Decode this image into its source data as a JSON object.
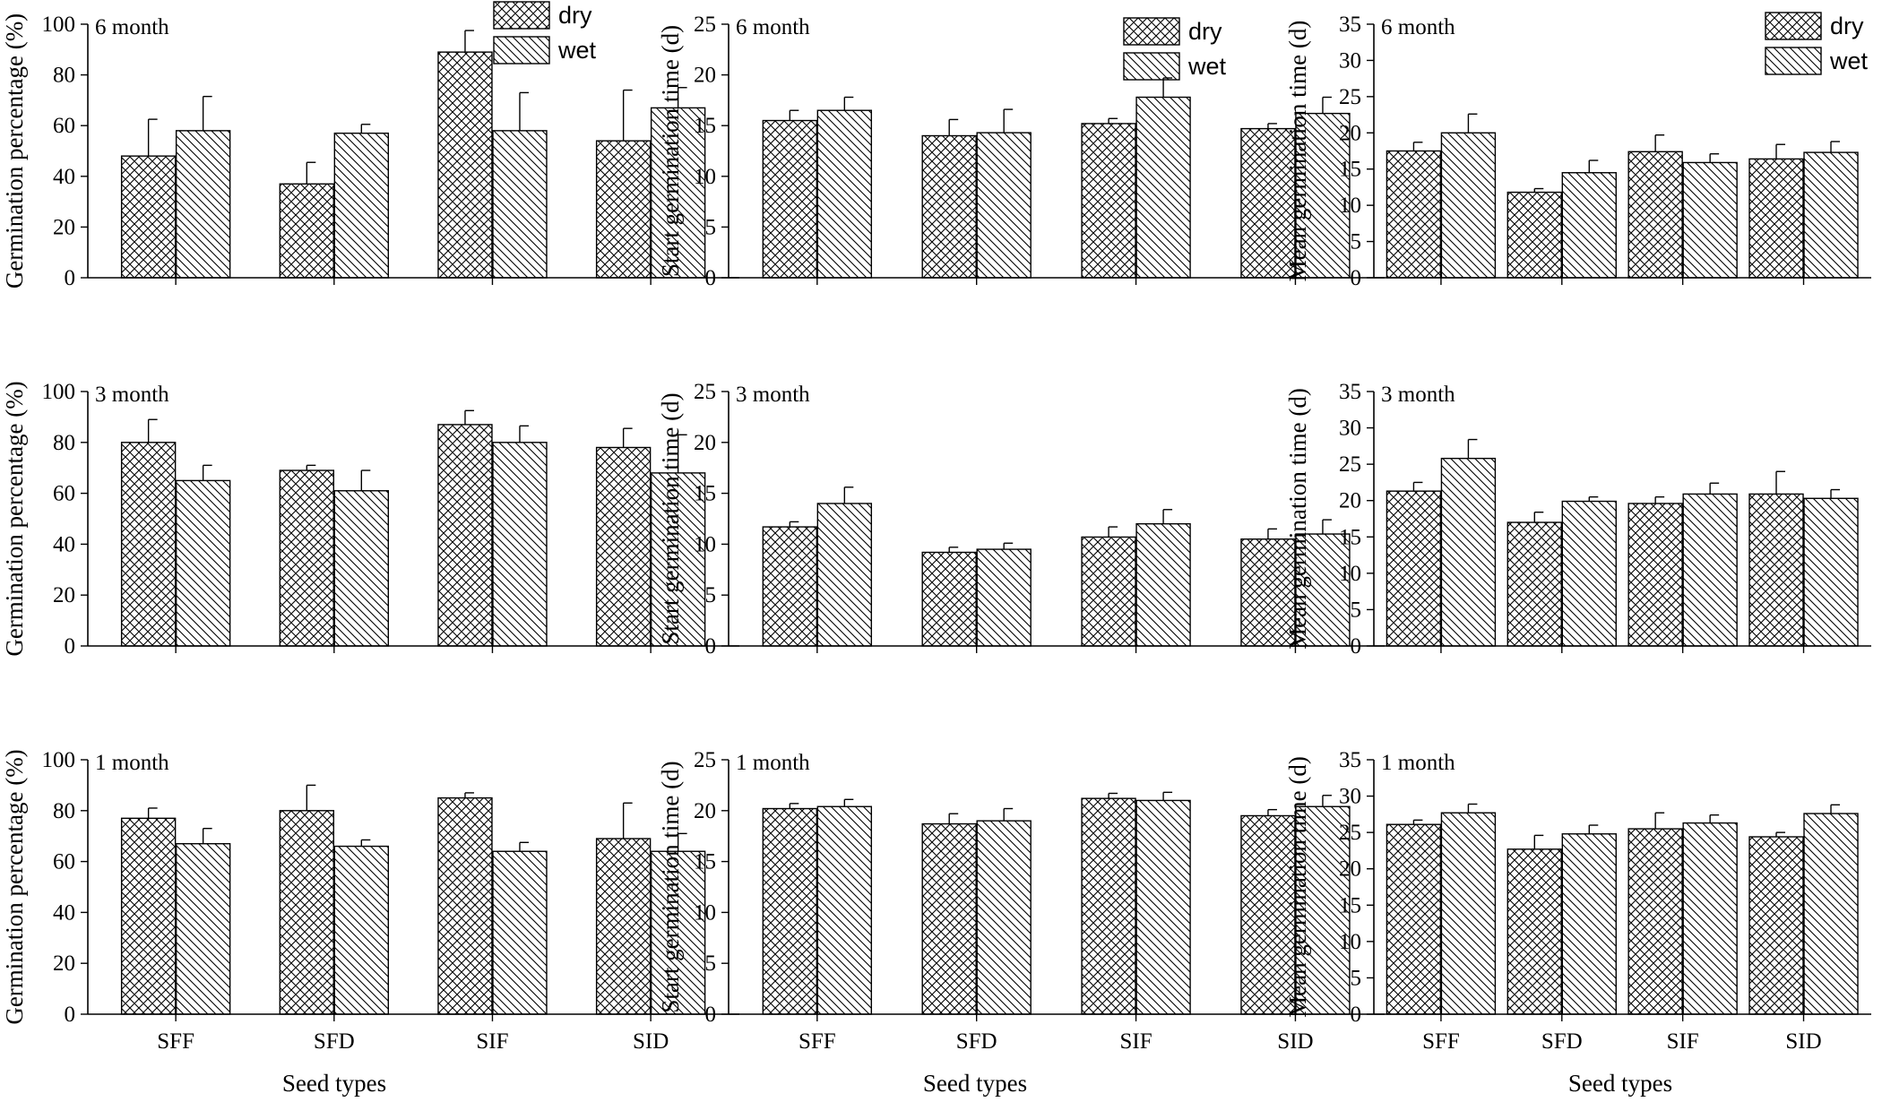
{
  "figure": {
    "x_axis_title": "Seed types",
    "legend": [
      {
        "key": "dry",
        "label": "dry",
        "pattern": "crosshatch"
      },
      {
        "key": "wet",
        "label": "wet",
        "pattern": "diagonal"
      }
    ],
    "colors": {
      "ink": "#000000",
      "background": "#ffffff"
    }
  },
  "chart_data": [
    {
      "type": "bar",
      "title": "6 month",
      "ylabel": "Germination percentage (%)",
      "ylim": [
        0,
        100
      ],
      "ytick_step": 20,
      "categories": [
        "SFF",
        "SFD",
        "SIF",
        "SID"
      ],
      "series": [
        {
          "name": "dry",
          "values": [
            48,
            37,
            89,
            54
          ],
          "errors": [
            14.5,
            8.5,
            8.5,
            20
          ]
        },
        {
          "name": "wet",
          "values": [
            58,
            57,
            58,
            67
          ],
          "errors": [
            13.5,
            3.5,
            15,
            8
          ]
        }
      ]
    },
    {
      "type": "bar",
      "title": "6 month",
      "ylabel": "Start germination time (d)",
      "ylim": [
        0,
        25
      ],
      "ytick_step": 5,
      "categories": [
        "SFF",
        "SFD",
        "SIF",
        "SID"
      ],
      "series": [
        {
          "name": "dry",
          "values": [
            15.5,
            14,
            15.2,
            14.7
          ],
          "errors": [
            1.0,
            1.6,
            0.5,
            0.5
          ]
        },
        {
          "name": "wet",
          "values": [
            16.5,
            14.3,
            17.8,
            16.2
          ],
          "errors": [
            1.3,
            2.3,
            1.9,
            1.6
          ]
        }
      ]
    },
    {
      "type": "bar",
      "title": "6 month",
      "ylabel": "Mean germination time (d)",
      "ylim": [
        0,
        35
      ],
      "ytick_step": 5,
      "categories": [
        "SFF",
        "SFD",
        "SIF",
        "SID"
      ],
      "series": [
        {
          "name": "dry",
          "values": [
            17.5,
            11.8,
            17.4,
            16.4
          ],
          "errors": [
            1.2,
            0.5,
            2.3,
            2.0
          ]
        },
        {
          "name": "wet",
          "values": [
            20,
            14.5,
            15.9,
            17.3
          ],
          "errors": [
            2.6,
            1.7,
            1.2,
            1.5
          ]
        }
      ]
    },
    {
      "type": "bar",
      "title": "3 month",
      "ylabel": "Germination percentage (%)",
      "ylim": [
        0,
        100
      ],
      "ytick_step": 20,
      "categories": [
        "SFF",
        "SFD",
        "SIF",
        "SID"
      ],
      "series": [
        {
          "name": "dry",
          "values": [
            80,
            69,
            87,
            78
          ],
          "errors": [
            9,
            2,
            5.5,
            7.5
          ]
        },
        {
          "name": "wet",
          "values": [
            65,
            61,
            80,
            68
          ],
          "errors": [
            6,
            8,
            6.5,
            15
          ]
        }
      ]
    },
    {
      "type": "bar",
      "title": "3 month",
      "ylabel": "Start germination time (d)",
      "ylim": [
        0,
        25
      ],
      "ytick_step": 5,
      "categories": [
        "SFF",
        "SFD",
        "SIF",
        "SID"
      ],
      "series": [
        {
          "name": "dry",
          "values": [
            11.7,
            9.2,
            10.7,
            10.5
          ],
          "errors": [
            0.5,
            0.5,
            1.0,
            1.0
          ]
        },
        {
          "name": "wet",
          "values": [
            14,
            9.5,
            12,
            11
          ],
          "errors": [
            1.6,
            0.6,
            1.4,
            1.4
          ]
        }
      ]
    },
    {
      "type": "bar",
      "title": "3 month",
      "ylabel": "Mean germination time (d)",
      "ylim": [
        0,
        35
      ],
      "ytick_step": 5,
      "categories": [
        "SFF",
        "SFD",
        "SIF",
        "SID"
      ],
      "series": [
        {
          "name": "dry",
          "values": [
            21.3,
            17,
            19.6,
            20.9
          ],
          "errors": [
            1.2,
            1.4,
            0.9,
            3.1
          ]
        },
        {
          "name": "wet",
          "values": [
            25.8,
            19.9,
            20.9,
            20.3
          ],
          "errors": [
            2.6,
            0.6,
            1.5,
            1.2
          ]
        }
      ]
    },
    {
      "type": "bar",
      "title": "1 month",
      "ylabel": "Germination percentage (%)",
      "ylim": [
        0,
        100
      ],
      "ytick_step": 20,
      "categories": [
        "SFF",
        "SFD",
        "SIF",
        "SID"
      ],
      "series": [
        {
          "name": "dry",
          "values": [
            77,
            80,
            85,
            69
          ],
          "errors": [
            4,
            10,
            2,
            14
          ]
        },
        {
          "name": "wet",
          "values": [
            67,
            66,
            64,
            64
          ],
          "errors": [
            6,
            2.5,
            3.5,
            7
          ]
        }
      ]
    },
    {
      "type": "bar",
      "title": "1 month",
      "ylabel": "Start germination time (d)",
      "ylim": [
        0,
        25
      ],
      "ytick_step": 5,
      "categories": [
        "SFF",
        "SFD",
        "SIF",
        "SID"
      ],
      "series": [
        {
          "name": "dry",
          "values": [
            20.2,
            18.7,
            21.2,
            19.5
          ],
          "errors": [
            0.5,
            1.0,
            0.5,
            0.6
          ]
        },
        {
          "name": "wet",
          "values": [
            20.4,
            19,
            21,
            20.4
          ],
          "errors": [
            0.7,
            1.2,
            0.8,
            1.1
          ]
        }
      ]
    },
    {
      "type": "bar",
      "title": "1 month",
      "ylabel": "Mean germination time (d)",
      "ylim": [
        0,
        35
      ],
      "ytick_step": 5,
      "categories": [
        "SFF",
        "SFD",
        "SIF",
        "SID"
      ],
      "series": [
        {
          "name": "dry",
          "values": [
            26.1,
            22.7,
            25.5,
            24.4
          ],
          "errors": [
            0.6,
            1.9,
            2.2,
            0.6
          ]
        },
        {
          "name": "wet",
          "values": [
            27.7,
            24.8,
            26.3,
            27.6
          ],
          "errors": [
            1.2,
            1.2,
            1.1,
            1.2
          ]
        }
      ]
    }
  ]
}
